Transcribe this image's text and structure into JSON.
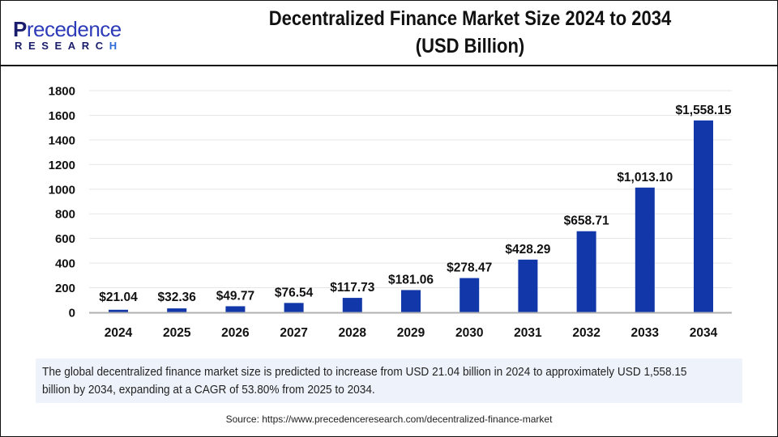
{
  "brand": {
    "logo_top_initial": "P",
    "logo_top_rest": "recedence",
    "logo_bottom_main": "RESEARC",
    "logo_bottom_last": "H"
  },
  "colors": {
    "bar": "#1237a8",
    "grid": "#e6e6e6",
    "axis": "#b0b0b0",
    "caption_bg": "#eef3fb"
  },
  "chart_data": {
    "type": "bar",
    "title": "Decentralized Finance Market Size 2024 to 2034 (USD Billion)",
    "title_lines": [
      "Decentralized Finance Market Size 2024 to 2034",
      "(USD Billion)"
    ],
    "xlabel": "",
    "ylabel": "",
    "categories": [
      "2024",
      "2025",
      "2026",
      "2027",
      "2028",
      "2029",
      "2030",
      "2031",
      "2032",
      "2033",
      "2034"
    ],
    "values": [
      21.04,
      32.36,
      49.77,
      76.54,
      117.73,
      181.06,
      278.47,
      428.29,
      658.71,
      1013.1,
      1558.15
    ],
    "data_labels": [
      "$21.04",
      "$32.36",
      "$49.77",
      "$76.54",
      "$117.73",
      "$181.06",
      "$278.47",
      "$428.29",
      "$658.71",
      "$1,013.10",
      "$1,558.15"
    ],
    "ylim": [
      0,
      1800
    ],
    "yticks": [
      0,
      200,
      400,
      600,
      800,
      1000,
      1200,
      1400,
      1600,
      1800
    ],
    "grid": true,
    "legend": "none"
  },
  "caption": "The global decentralized finance market size is predicted to increase from USD 21.04 billion in 2024 to approximately USD 1,558.15 billion by 2034, expanding at a CAGR of 53.80% from 2025 to 2034.",
  "source": "Source: https://www.precedenceresearch.com/decentralized-finance-market"
}
